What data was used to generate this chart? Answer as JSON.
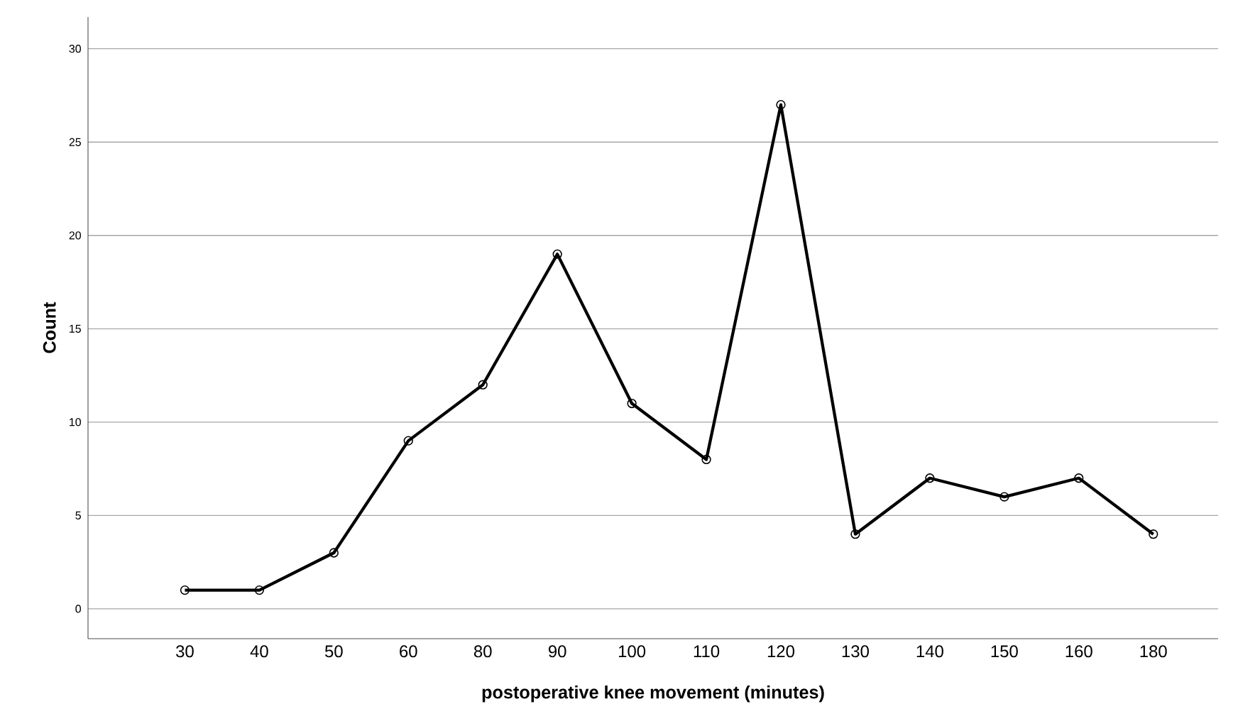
{
  "chart_data": {
    "type": "line",
    "xlabel": "postoperative knee movement (minutes)",
    "ylabel": "Count",
    "categories": [
      "30",
      "40",
      "50",
      "60",
      "80",
      "90",
      "100",
      "110",
      "120",
      "130",
      "140",
      "150",
      "160",
      "180"
    ],
    "series": [
      {
        "color": "#000000",
        "values": [
          1,
          1,
          3,
          9,
          12,
          19,
          11,
          8,
          27,
          4,
          7,
          6,
          7,
          4
        ]
      }
    ],
    "ylim": [
      -1.6,
      31.7
    ],
    "yticks": [
      0,
      5,
      10,
      15,
      20,
      25,
      30
    ],
    "grid": "y",
    "marker": "circle",
    "line_style": "solid"
  }
}
